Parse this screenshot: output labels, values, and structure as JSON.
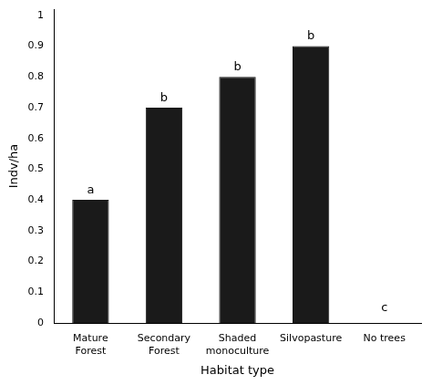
{
  "chart_data": {
    "type": "bar",
    "xlabel": "Habitat type",
    "ylabel": "Indv/ha",
    "categories": [
      "Mature\nForest",
      "Secondary\nForest",
      "Shaded\nmonoculture",
      "Silvopasture",
      "No trees"
    ],
    "values": [
      0.4,
      0.7,
      0.8,
      0.9,
      0.0
    ],
    "annotations": [
      "a",
      "b",
      "b",
      "b",
      "c"
    ],
    "color": "#1a1a1a",
    "ylim": [
      0,
      1.02
    ],
    "yticks": [
      0,
      0.1,
      0.2,
      0.3,
      0.4,
      0.5,
      0.6,
      0.7,
      0.8,
      0.9,
      1
    ],
    "grid": false,
    "legend": false
  }
}
